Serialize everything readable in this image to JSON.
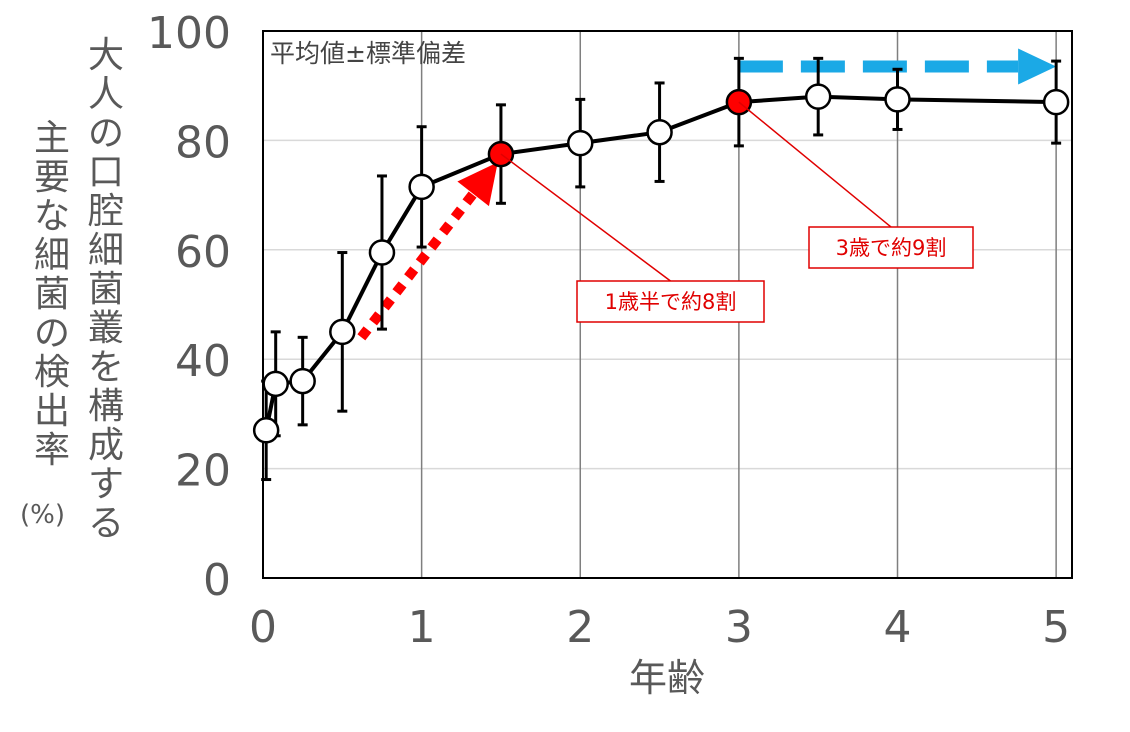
{
  "chart_data": {
    "type": "line",
    "ylabel_lines": [
      "大人の口腔細菌叢を構成する",
      "主要な細菌の検出率"
    ],
    "ylabel_unit": "(%)",
    "xlabel": "年齢",
    "legend_note": "平均値±標準偏差",
    "xlim": [
      0,
      5.1
    ],
    "ylim": [
      0,
      100
    ],
    "xticks": [
      0,
      1,
      2,
      3,
      4,
      5
    ],
    "yticks": [
      0,
      20,
      40,
      60,
      80,
      100
    ],
    "grid": "vertical-and-horizontal",
    "series": [
      {
        "x": [
          0.02,
          0.08,
          0.25,
          0.5,
          0.75,
          1.0,
          1.5,
          2.0,
          2.5,
          3.0,
          3.5,
          4.0,
          5.0
        ],
        "y": [
          27,
          35.5,
          36,
          45,
          59.5,
          71.5,
          77.5,
          79.5,
          81.5,
          87,
          88,
          87.5,
          87
        ],
        "err": [
          9,
          9.5,
          8,
          14.5,
          14,
          11,
          9,
          8,
          9,
          8,
          7,
          5.5,
          7.5
        ],
        "highlight": [
          false,
          false,
          false,
          false,
          false,
          false,
          true,
          false,
          false,
          true,
          false,
          false,
          false
        ]
      }
    ],
    "annotations": [
      {
        "text": "1歳半で約8割",
        "x": 1.5,
        "y": 77.5,
        "color": "#e00000"
      },
      {
        "text": "3歳で約9割",
        "x": 3.0,
        "y": 87,
        "color": "#e00000"
      }
    ],
    "arrows": [
      {
        "style": "dotted",
        "color": "#ff0000",
        "from": [
          0.62,
          44
        ],
        "to": [
          1.48,
          76
        ]
      },
      {
        "style": "dashed",
        "color": "#1ba9e6",
        "from": [
          3.0,
          93.5
        ],
        "to": [
          5.0,
          93.5
        ]
      }
    ]
  }
}
